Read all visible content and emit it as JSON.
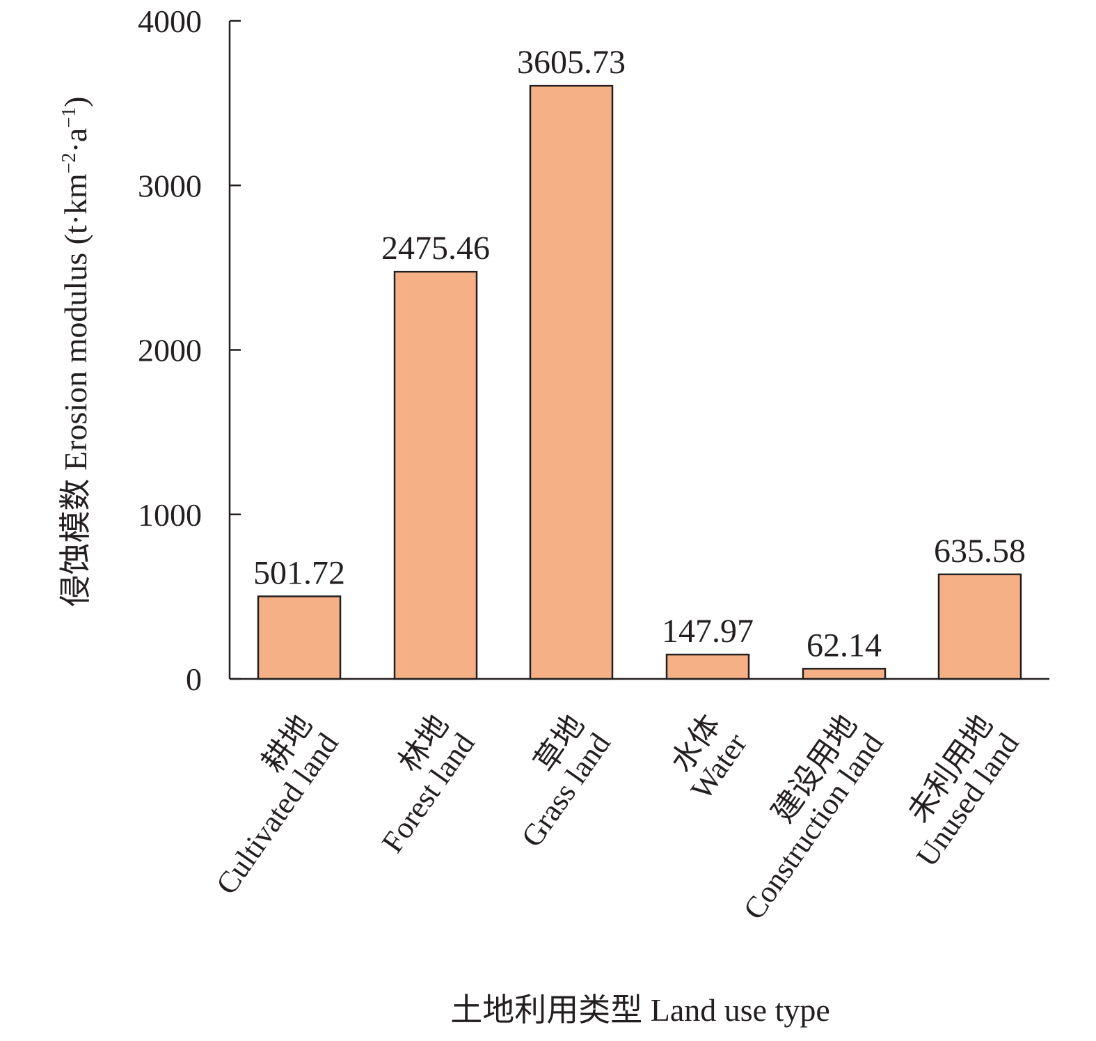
{
  "chart_data": {
    "type": "bar",
    "categories": [
      [
        "耕地",
        "Cultivated land"
      ],
      [
        "林地",
        "Forest land"
      ],
      [
        "草地",
        "Grass land"
      ],
      [
        "水体",
        "Water"
      ],
      [
        "建设用地",
        "Construction land"
      ],
      [
        "未利用地",
        "Unused land"
      ]
    ],
    "values": [
      501.72,
      2475.46,
      3605.73,
      147.97,
      62.14,
      635.58
    ],
    "value_labels": [
      "501.72",
      "2475.46",
      "3605.73",
      "147.97",
      "62.14",
      "635.58"
    ],
    "xlabel": "土地利用类型 Land use type",
    "ylabel": "侵蚀模数 Erosion modulus (t·km",
    "ylabel_sup1": "−2",
    "ylabel_mid": "·a",
    "ylabel_sup2": "−1",
    "ylabel_end": ")",
    "ylim": [
      0,
      4000
    ],
    "yticks": [
      0,
      1000,
      2000,
      3000,
      4000
    ],
    "ytick_labels": [
      "0",
      "1000",
      "2000",
      "3000",
      "4000"
    ],
    "bar_color": "#f5b185",
    "edge_color": "#231f20",
    "grid": false,
    "legend": "none"
  }
}
